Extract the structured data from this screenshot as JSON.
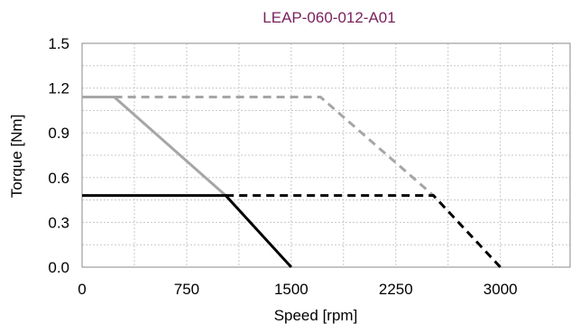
{
  "chart_data": {
    "type": "line",
    "title": "LEAP-060-012-A01",
    "xlabel": "Speed [rpm]",
    "ylabel": "Torque [Nm]",
    "xlim": [
      0,
      3500
    ],
    "ylim": [
      0,
      1.5
    ],
    "x_ticks": [
      0,
      750,
      1500,
      2250,
      3000
    ],
    "x_tick_labels": [
      "0",
      "750",
      "1500",
      "2250",
      "3000"
    ],
    "y_ticks": [
      0,
      0.3,
      0.6,
      0.9,
      1.2,
      1.5
    ],
    "y_tick_labels": [
      "0.0",
      "0.3",
      "0.6",
      "0.9",
      "1.2",
      "1.5"
    ],
    "grid": true,
    "legend": "none",
    "colors": {
      "title": "#7a1f5c",
      "grid": "#c8c8c8",
      "axis": "#000000",
      "gray": "#a6a6a6",
      "black": "#000000"
    },
    "series": [
      {
        "style": "solid",
        "color": "#a6a6a6",
        "x": [
          0,
          230,
          1030
        ],
        "y": [
          1.14,
          1.14,
          0.48
        ]
      },
      {
        "style": "dashed",
        "color": "#a6a6a6",
        "x": [
          230,
          1710,
          2520
        ],
        "y": [
          1.14,
          1.14,
          0.48
        ]
      },
      {
        "style": "solid",
        "color": "#000000",
        "x": [
          0,
          1030,
          1500
        ],
        "y": [
          0.48,
          0.48,
          0
        ]
      },
      {
        "style": "dashed",
        "color": "#000000",
        "x": [
          1030,
          2520,
          3000
        ],
        "y": [
          0.48,
          0.48,
          0
        ]
      }
    ]
  }
}
